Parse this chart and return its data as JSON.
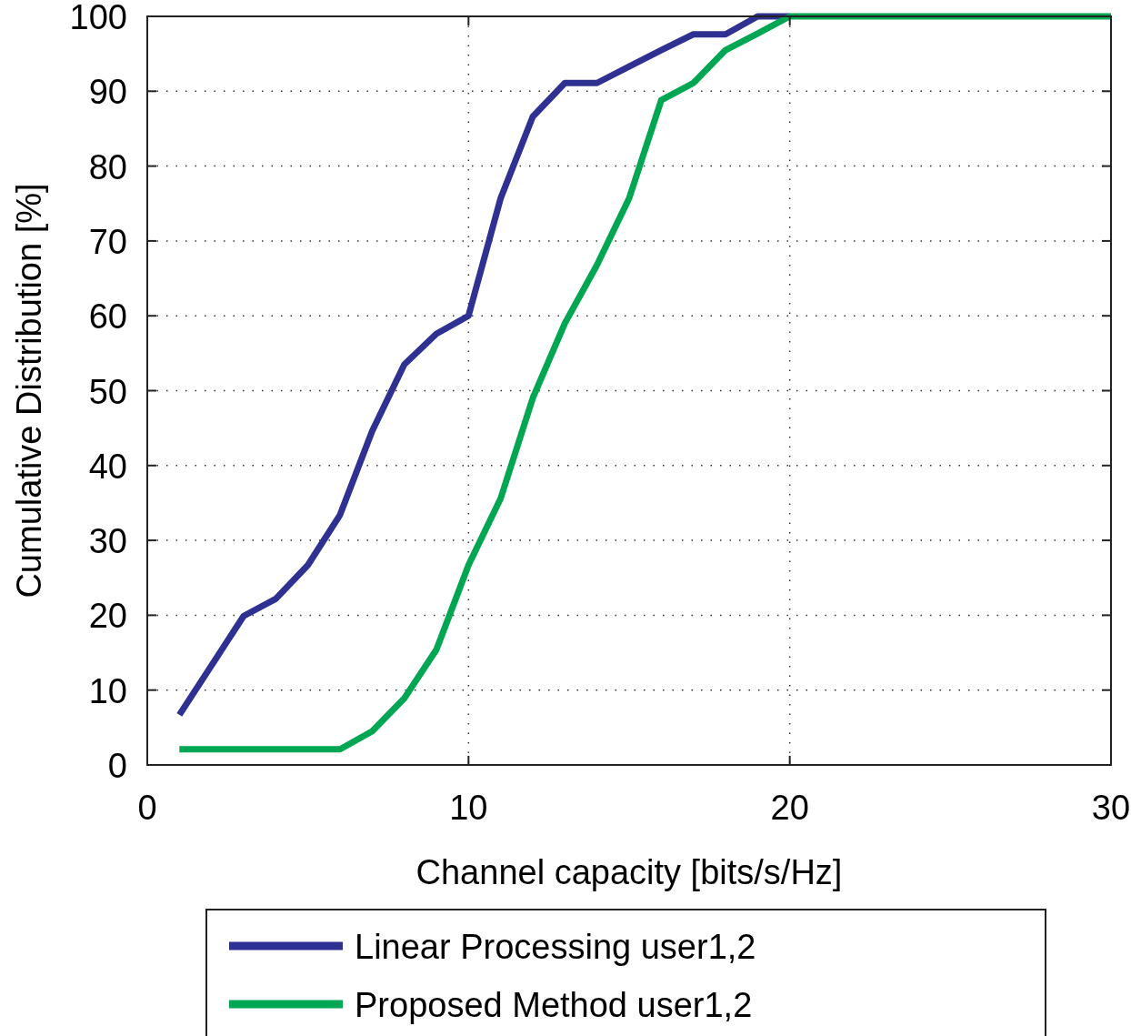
{
  "chart_data": {
    "type": "line",
    "xlabel": "Channel capacity [bits/s/Hz]",
    "ylabel": "Cumulative Distribution [%]",
    "xlim": [
      0,
      30
    ],
    "xticks": [
      0,
      10,
      20,
      30
    ],
    "ylim": [
      0,
      100
    ],
    "yticks": [
      0,
      10,
      20,
      30,
      40,
      50,
      60,
      70,
      80,
      90,
      100
    ],
    "grid": true,
    "legend": "bottom",
    "line_style": "solid",
    "marker": "none",
    "series": [
      {
        "name": "Linear Processing user1,2",
        "color": "#2e3192",
        "x": [
          1,
          2,
          3,
          4,
          5,
          6,
          7,
          8,
          9,
          10,
          11,
          12,
          13,
          14,
          15,
          16,
          17,
          18,
          19,
          20
        ],
        "values": [
          6.7,
          13.3,
          19.9,
          22.2,
          26.7,
          33.4,
          44.6,
          53.5,
          57.6,
          60,
          75.7,
          86.6,
          91.1,
          91.1,
          93.3,
          95.5,
          97.6,
          97.6,
          100,
          100
        ]
      },
      {
        "name": "Proposed Method user1,2",
        "color": "#00a651",
        "x": [
          1,
          2,
          3,
          4,
          5,
          6,
          7,
          8,
          9,
          10,
          11,
          12,
          13,
          14,
          15,
          16,
          17,
          18,
          19,
          20,
          30
        ],
        "values": [
          2.1,
          2.1,
          2.1,
          2.1,
          2.1,
          2.1,
          4.5,
          8.9,
          15.4,
          26.7,
          35.6,
          49,
          59,
          66.8,
          75.7,
          88.8,
          91.1,
          95.5,
          97.7,
          100,
          100
        ]
      }
    ]
  }
}
